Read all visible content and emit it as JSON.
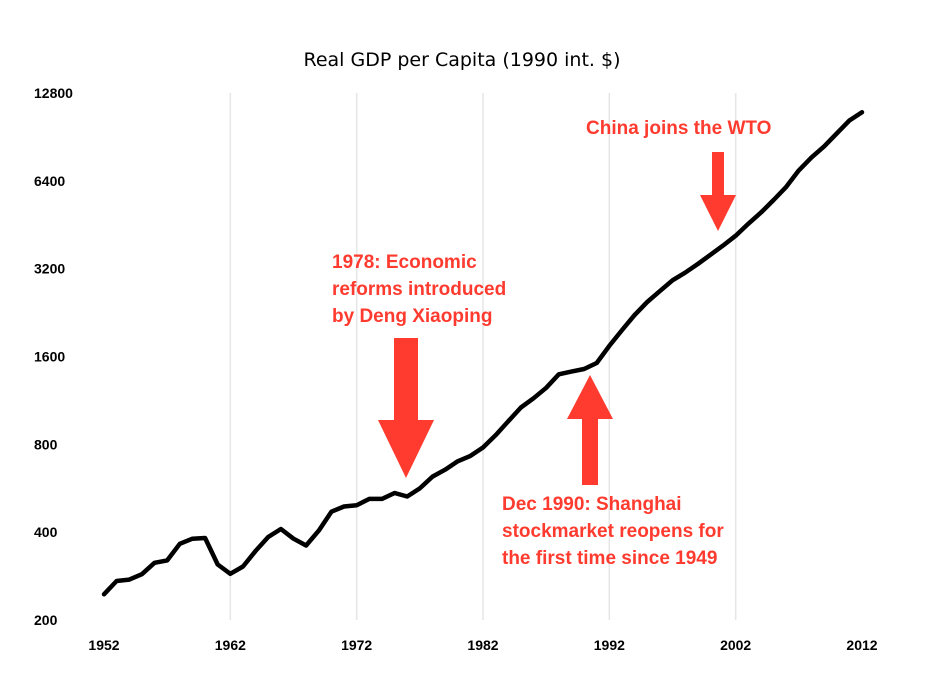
{
  "chart_data": {
    "type": "line",
    "title": "Real GDP per Capita (1990 int. $)",
    "xlabel": "",
    "ylabel": "",
    "y_scale": "log2",
    "xlim": [
      1952,
      2012
    ],
    "ylim": [
      200,
      12800
    ],
    "x_ticks": [
      1952,
      1962,
      1972,
      1982,
      1992,
      2002,
      2012
    ],
    "y_ticks": [
      200,
      400,
      800,
      1600,
      3200,
      6400,
      12800
    ],
    "x_tick_labels": [
      "1952",
      "1962",
      "1972",
      "1982",
      "1992",
      "2002",
      "2012"
    ],
    "y_tick_labels": [
      "200",
      "400",
      "800",
      "1600",
      "3200",
      "6400",
      "12800"
    ],
    "grid": "vertical",
    "series": [
      {
        "color": "#000000",
        "x": [
          1952,
          1953,
          1954,
          1955,
          1956,
          1957,
          1958,
          1959,
          1960,
          1961,
          1962,
          1963,
          1964,
          1965,
          1966,
          1967,
          1968,
          1969,
          1970,
          1971,
          1972,
          1973,
          1974,
          1975,
          1976,
          1977,
          1978,
          1979,
          1980,
          1981,
          1982,
          1983,
          1984,
          1985,
          1986,
          1987,
          1988,
          1989,
          1990,
          1991,
          1992,
          1993,
          1994,
          1995,
          1996,
          1997,
          1998,
          1999,
          2000,
          2001,
          2002,
          2003,
          2004,
          2005,
          2006,
          2007,
          2008,
          2009,
          2010,
          2011,
          2012
        ],
        "y": [
          245,
          272,
          275,
          287,
          314,
          320,
          365,
          380,
          382,
          310,
          288,
          305,
          345,
          385,
          410,
          380,
          360,
          405,
          470,
          490,
          495,
          520,
          520,
          545,
          530,
          565,
          620,
          655,
          700,
          730,
          780,
          860,
          960,
          1070,
          1150,
          1250,
          1390,
          1420,
          1450,
          1520,
          1740,
          1970,
          2220,
          2460,
          2680,
          2920,
          3100,
          3320,
          3570,
          3840,
          4150,
          4560,
          4980,
          5500,
          6100,
          6950,
          7700,
          8400,
          9300,
          10300,
          11000
        ]
      }
    ],
    "annotations": [
      {
        "lines": [
          "1978: Economic",
          "reforms introduced",
          "by Deng Xiaoping"
        ],
        "color": "#ff3b2f",
        "arrow_target_x": 1977,
        "arrow_direction": "down"
      },
      {
        "lines": [
          "Dec 1990: Shanghai",
          "stockmarket reopens for",
          "the first time since 1949"
        ],
        "color": "#ff3b2f",
        "arrow_target_x": 1990,
        "arrow_direction": "up"
      },
      {
        "lines": [
          "China joins the WTO"
        ],
        "color": "#ff3b2f",
        "arrow_target_x": 2001,
        "arrow_direction": "down"
      }
    ]
  }
}
